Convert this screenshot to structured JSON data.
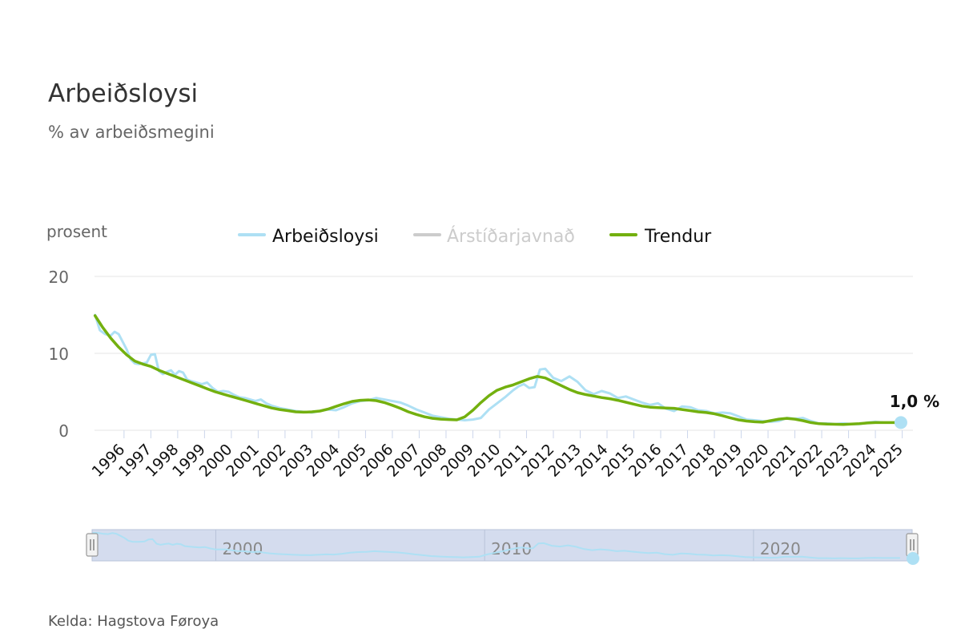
{
  "chart_data": {
    "type": "line",
    "title": "Arbeiðsloysi",
    "subtitle": "% av arbeiðsmegini",
    "ylabel": "prosent",
    "ylim": [
      0,
      20
    ],
    "yticks": [
      "0",
      "10",
      "20"
    ],
    "xlim": [
      1995.4,
      2025.9
    ],
    "xticks": [
      "1996",
      "1997",
      "1998",
      "1999",
      "2000",
      "2001",
      "2002",
      "2003",
      "2004",
      "2005",
      "2006",
      "2007",
      "2008",
      "2009",
      "2010",
      "2011",
      "2012",
      "2013",
      "2014",
      "2015",
      "2016",
      "2017",
      "2018",
      "2019",
      "2020",
      "2021",
      "2022",
      "2023",
      "2024",
      "2025"
    ],
    "grid": true,
    "legend_position": "top-center",
    "source": "Kelda: Hagstova Føroya",
    "last_value_label": "1,0 %",
    "navigator_ticks": [
      "2000",
      "2010",
      "2020"
    ],
    "colors": {
      "unemployment": "#aee0f4",
      "seasonal": "#cccccc",
      "trend": "#73b00f",
      "navigator_mask": "#ccd6eb"
    },
    "series": [
      {
        "name": "Arbeiðsloysi",
        "x": [
          1995.42,
          1995.6,
          1995.8,
          1996.0,
          1996.15,
          1996.3,
          1996.45,
          1996.6,
          1996.75,
          1996.9,
          1997.05,
          1997.2,
          1997.35,
          1997.5,
          1997.65,
          1997.8,
          1997.95,
          1998.1,
          1998.25,
          1998.4,
          1998.55,
          1998.7,
          1998.85,
          1999.0,
          1999.2,
          1999.4,
          1999.6,
          1999.8,
          2000.0,
          2000.2,
          2000.4,
          2000.6,
          2000.8,
          2001.0,
          2001.2,
          2001.4,
          2001.6,
          2001.8,
          2002.0,
          2002.3,
          2002.6,
          2002.9,
          2003.2,
          2003.5,
          2003.8,
          2004.1,
          2004.4,
          2004.7,
          2005.0,
          2005.3,
          2005.6,
          2005.9,
          2006.2,
          2006.5,
          2006.8,
          2007.1,
          2007.4,
          2007.7,
          2008.0,
          2008.3,
          2008.6,
          2008.9,
          2009.2,
          2009.5,
          2009.8,
          2010.1,
          2010.4,
          2010.7,
          2011.0,
          2011.2,
          2011.4,
          2011.6,
          2011.8,
          2012.0,
          2012.2,
          2012.5,
          2012.8,
          2013.1,
          2013.4,
          2013.7,
          2014.0,
          2014.3,
          2014.6,
          2014.9,
          2015.2,
          2015.5,
          2015.8,
          2016.1,
          2016.4,
          2016.7,
          2017.0,
          2017.3,
          2017.6,
          2017.9,
          2018.2,
          2018.5,
          2018.8,
          2019.1,
          2019.4,
          2019.7,
          2020.0,
          2020.3,
          2020.6,
          2020.9,
          2021.2,
          2021.5,
          2021.8,
          2022.1,
          2022.4,
          2022.7,
          2023.0,
          2023.3,
          2023.6,
          2023.9,
          2024.2,
          2024.5,
          2024.8,
          2025.1,
          2025.45
        ],
        "values": [
          15.0,
          13.0,
          12.5,
          12.3,
          12.8,
          12.5,
          11.5,
          10.5,
          9.2,
          8.7,
          8.6,
          8.7,
          8.8,
          9.8,
          9.9,
          7.7,
          7.3,
          7.6,
          7.8,
          7.2,
          7.7,
          7.5,
          6.6,
          6.4,
          6.2,
          6.0,
          6.2,
          5.5,
          5.0,
          5.1,
          5.0,
          4.6,
          4.3,
          4.2,
          4.0,
          3.8,
          4.0,
          3.5,
          3.2,
          2.9,
          2.7,
          2.5,
          2.4,
          2.3,
          2.5,
          2.7,
          2.6,
          3.0,
          3.5,
          3.8,
          3.9,
          4.2,
          4.0,
          3.8,
          3.6,
          3.2,
          2.7,
          2.3,
          1.9,
          1.7,
          1.5,
          1.4,
          1.3,
          1.4,
          1.6,
          2.7,
          3.5,
          4.3,
          5.2,
          5.7,
          6.0,
          5.5,
          5.6,
          7.9,
          8.0,
          6.8,
          6.4,
          7.0,
          6.3,
          5.2,
          4.7,
          5.1,
          4.8,
          4.2,
          4.4,
          4.0,
          3.6,
          3.3,
          3.5,
          2.8,
          2.5,
          3.1,
          3.0,
          2.6,
          2.5,
          2.2,
          2.3,
          2.2,
          1.8,
          1.4,
          1.3,
          1.2,
          1.1,
          1.2,
          1.6,
          1.5,
          1.6,
          1.2,
          0.9,
          0.9,
          0.8,
          0.9,
          0.8,
          0.8,
          1.0,
          1.1,
          1.0,
          1.0,
          1.0
        ]
      },
      {
        "name": "Árstíðarjavnað",
        "hidden": true
      },
      {
        "name": "Trendur",
        "x": [
          1995.42,
          1995.7,
          1996.0,
          1996.3,
          1996.6,
          1996.9,
          1997.2,
          1997.5,
          1997.8,
          1998.1,
          1998.4,
          1998.7,
          1999.0,
          1999.3,
          1999.6,
          1999.9,
          2000.2,
          2000.5,
          2000.8,
          2001.1,
          2001.4,
          2001.7,
          2002.0,
          2002.3,
          2002.6,
          2002.9,
          2003.2,
          2003.5,
          2003.8,
          2004.1,
          2004.4,
          2004.7,
          2005.0,
          2005.3,
          2005.6,
          2005.9,
          2006.2,
          2006.5,
          2006.8,
          2007.1,
          2007.4,
          2007.7,
          2008.0,
          2008.3,
          2008.6,
          2008.9,
          2009.2,
          2009.5,
          2009.8,
          2010.1,
          2010.4,
          2010.7,
          2011.0,
          2011.3,
          2011.6,
          2011.9,
          2012.2,
          2012.5,
          2012.8,
          2013.1,
          2013.4,
          2013.7,
          2014.0,
          2014.3,
          2014.6,
          2014.9,
          2015.2,
          2015.5,
          2015.8,
          2016.1,
          2016.4,
          2016.7,
          2017.0,
          2017.3,
          2017.6,
          2017.9,
          2018.2,
          2018.5,
          2018.8,
          2019.1,
          2019.4,
          2019.7,
          2020.0,
          2020.3,
          2020.6,
          2020.9,
          2021.2,
          2021.5,
          2021.8,
          2022.1,
          2022.4,
          2022.7,
          2023.0,
          2023.3,
          2023.6,
          2023.9,
          2024.2,
          2024.5,
          2024.8,
          2025.1,
          2025.45
        ],
        "values": [
          14.9,
          13.4,
          12.0,
          10.8,
          9.8,
          9.0,
          8.6,
          8.3,
          7.8,
          7.4,
          7.0,
          6.6,
          6.2,
          5.8,
          5.4,
          5.0,
          4.7,
          4.4,
          4.1,
          3.8,
          3.5,
          3.2,
          2.9,
          2.7,
          2.55,
          2.4,
          2.35,
          2.4,
          2.5,
          2.75,
          3.1,
          3.45,
          3.75,
          3.9,
          3.95,
          3.85,
          3.6,
          3.25,
          2.85,
          2.4,
          2.05,
          1.75,
          1.55,
          1.45,
          1.4,
          1.35,
          1.75,
          2.6,
          3.6,
          4.5,
          5.2,
          5.6,
          5.9,
          6.3,
          6.7,
          7.0,
          6.8,
          6.3,
          5.8,
          5.3,
          4.9,
          4.65,
          4.45,
          4.25,
          4.1,
          3.9,
          3.65,
          3.4,
          3.15,
          3.0,
          2.95,
          2.9,
          2.85,
          2.7,
          2.55,
          2.4,
          2.3,
          2.15,
          1.9,
          1.6,
          1.35,
          1.2,
          1.1,
          1.05,
          1.25,
          1.45,
          1.55,
          1.45,
          1.25,
          1.0,
          0.85,
          0.8,
          0.78,
          0.76,
          0.8,
          0.85,
          0.95,
          1.0,
          1.0,
          1.0,
          1.0
        ]
      }
    ]
  }
}
